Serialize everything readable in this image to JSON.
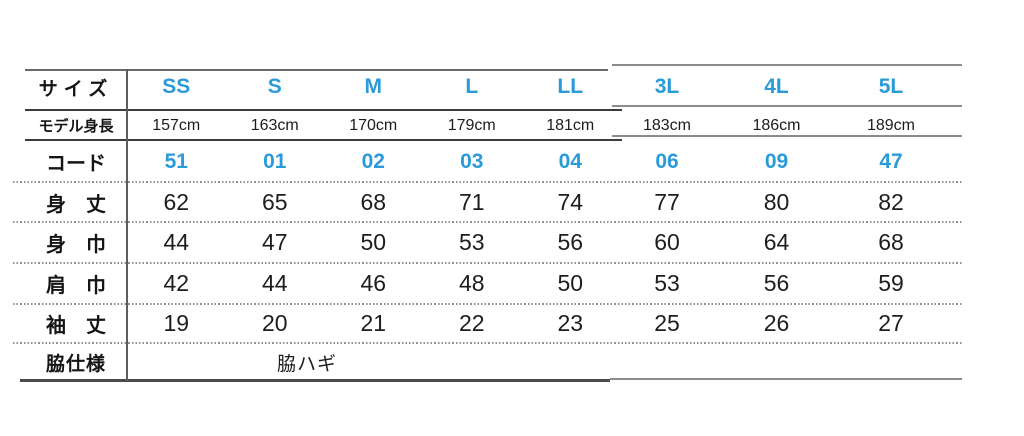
{
  "accent_color": "#2b9ad9",
  "chart_data": {
    "type": "table",
    "header_label": "サイズ",
    "columns": [
      "SS",
      "S",
      "M",
      "L",
      "LL",
      "3L",
      "4L",
      "5L"
    ],
    "model_height": {
      "label": "モデル身長",
      "values": [
        "157cm",
        "163cm",
        "170cm",
        "179cm",
        "181cm",
        "183cm",
        "186cm",
        "189cm"
      ]
    },
    "code": {
      "label": "コード",
      "values": [
        "51",
        "01",
        "02",
        "03",
        "04",
        "06",
        "09",
        "47"
      ]
    },
    "rows": [
      {
        "label": "身　丈",
        "values": [
          "62",
          "65",
          "68",
          "71",
          "74",
          "77",
          "80",
          "82"
        ]
      },
      {
        "label": "身　巾",
        "values": [
          "44",
          "47",
          "50",
          "53",
          "56",
          "60",
          "64",
          "68"
        ]
      },
      {
        "label": "肩　巾",
        "values": [
          "42",
          "44",
          "46",
          "48",
          "50",
          "53",
          "56",
          "59"
        ]
      },
      {
        "label": "袖　丈",
        "values": [
          "19",
          "20",
          "21",
          "22",
          "23",
          "25",
          "26",
          "27"
        ]
      }
    ],
    "side_spec": {
      "label": "脇仕様",
      "value": "脇ハギ"
    }
  }
}
